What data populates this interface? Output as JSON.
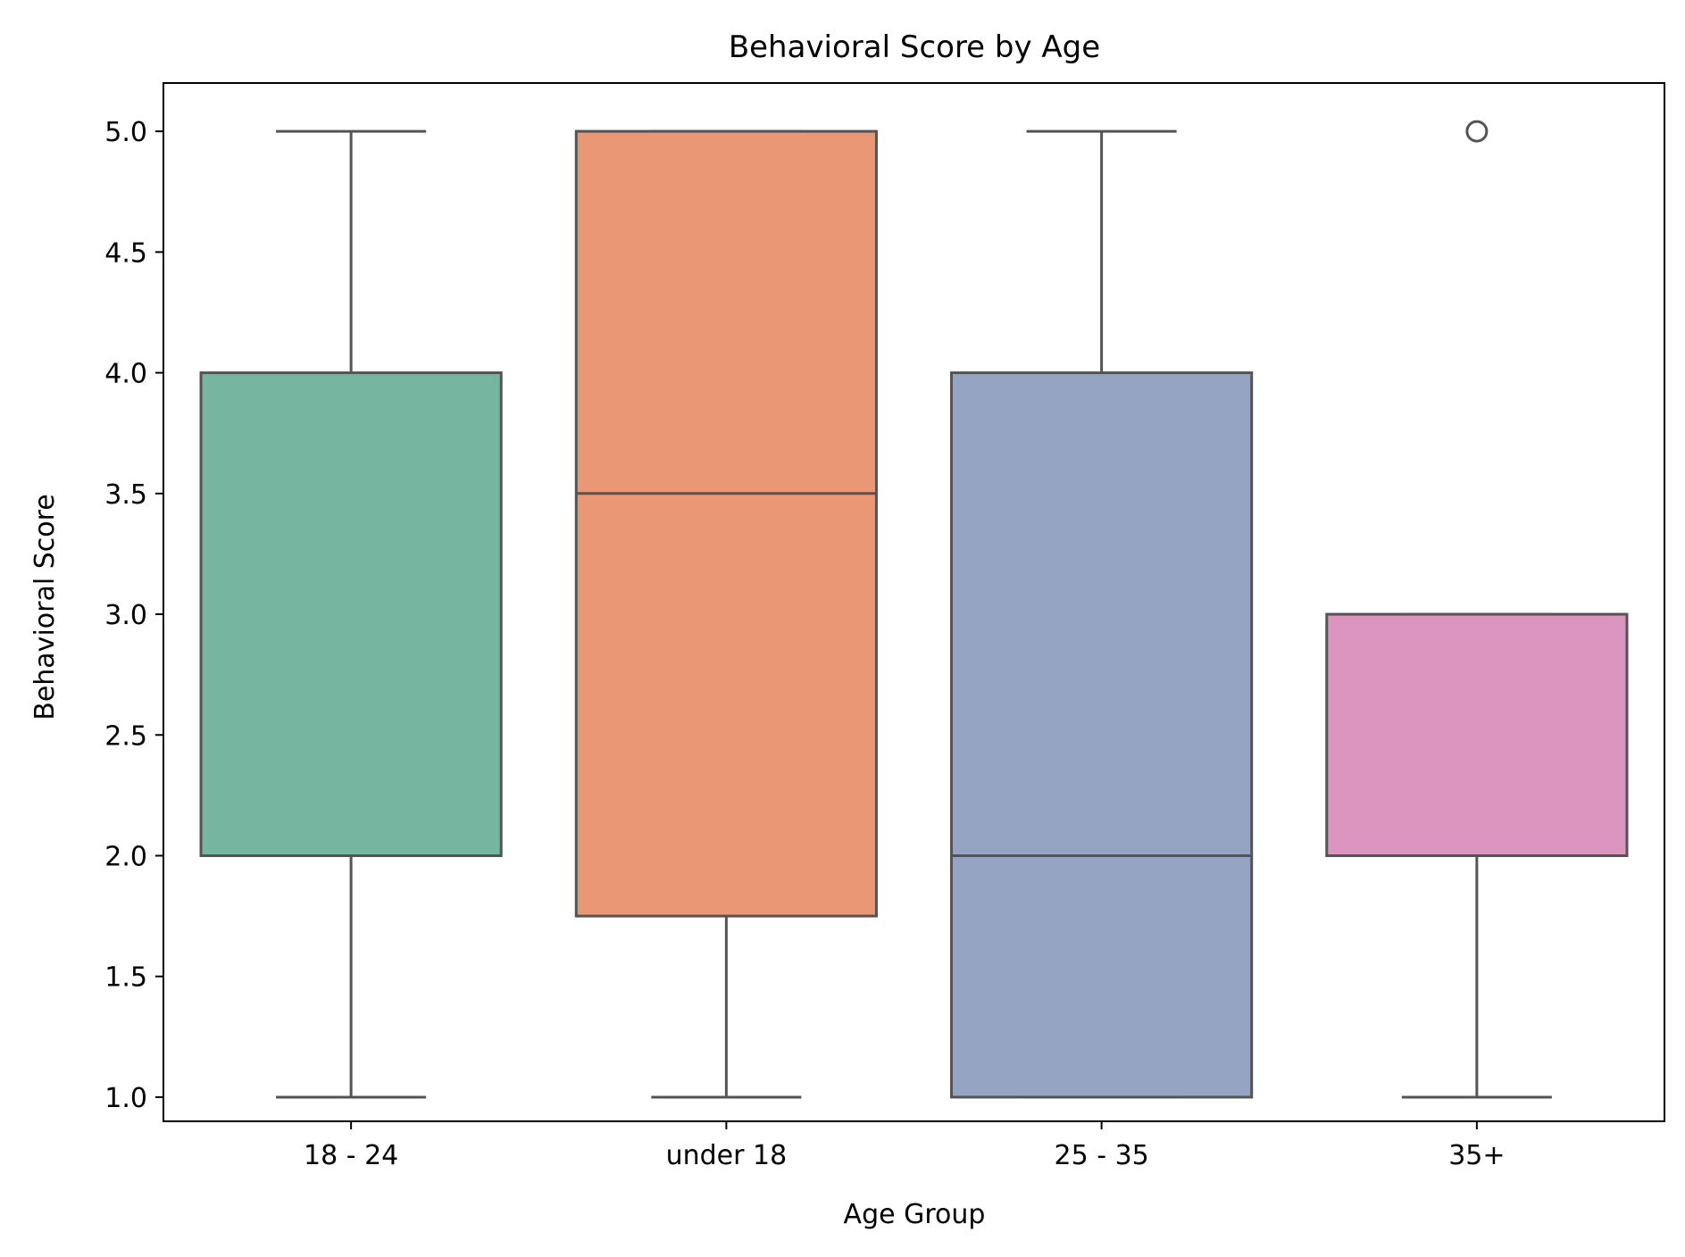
{
  "chart_data": {
    "type": "box",
    "title": "Behavioral Score by Age",
    "xlabel": "Age Group",
    "ylabel": "Behavioral Score",
    "categories": [
      "18 - 24",
      "under 18",
      "25 - 35",
      "35+"
    ],
    "yticks": [
      "1.0",
      "1.5",
      "2.0",
      "2.5",
      "3.0",
      "3.5",
      "4.0",
      "4.5",
      "5.0"
    ],
    "ylim": [
      0.9,
      5.2
    ],
    "grid": false,
    "boxes": [
      {
        "category": "18 - 24",
        "whisker_low": 1.0,
        "q1": 2.0,
        "median": 2.0,
        "q3": 4.0,
        "whisker_high": 5.0,
        "outliers": [],
        "color": "#76b5a0"
      },
      {
        "category": "under 18",
        "whisker_low": 1.0,
        "q1": 1.75,
        "median": 3.5,
        "q3": 5.0,
        "whisker_high": 5.0,
        "outliers": [],
        "color": "#e99775"
      },
      {
        "category": "25 - 35",
        "whisker_low": 1.0,
        "q1": 1.0,
        "median": 2.0,
        "q3": 4.0,
        "whisker_high": 5.0,
        "outliers": [],
        "color": "#95a4c2"
      },
      {
        "category": "35+",
        "whisker_low": 1.0,
        "q1": 2.0,
        "median": 2.0,
        "q3": 3.0,
        "whisker_high": 3.0,
        "outliers": [
          5.0
        ],
        "color": "#dc95bf"
      }
    ],
    "line_color": "#545454"
  }
}
